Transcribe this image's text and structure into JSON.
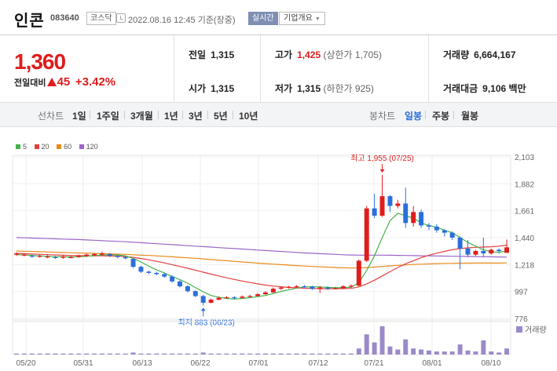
{
  "header": {
    "name": "인콘",
    "code": "083640",
    "market": "코스닥",
    "timestamp": "2022.08.16 12:45 기준(장중)",
    "realtime": "실시간",
    "company_overview": "기업개요"
  },
  "summary": {
    "price": "1,360",
    "change_label": "전일대비",
    "change_amount": "45",
    "change_percent": "+3.42%",
    "prev_close_label": "전일",
    "prev_close": "1,315",
    "open_label": "시가",
    "open": "1,315",
    "high_label": "고가",
    "high": "1,425",
    "upper_limit": "(상한가 1,705)",
    "low_label": "저가",
    "low": "1,315",
    "lower_limit": "(하한가 925)",
    "volume_label": "거래량",
    "volume": "6,664,167",
    "amount_label": "거래대금",
    "amount": "9,106 백만"
  },
  "periodbar": {
    "line_label": "선차트",
    "periods": [
      "1일",
      "1주일",
      "3개월",
      "1년",
      "3년",
      "5년",
      "10년"
    ],
    "candle_label": "봉차트",
    "candle_periods": [
      "일봉",
      "주봉",
      "월봉"
    ],
    "active_candle": "일봉"
  },
  "colors": {
    "up": "#e01c1c",
    "down": "#2a6fdb",
    "ma5": "#43b24a",
    "ma20": "#e34040",
    "ma60": "#e88a1a",
    "ma120": "#9b66c9"
  },
  "chart_data": {
    "type": "candlestick",
    "legend": [
      "5",
      "20",
      "60",
      "120"
    ],
    "y_ticks": [
      "2,103",
      "1,882",
      "1,661",
      "1,440",
      "1,218",
      "997",
      "776"
    ],
    "ylim": [
      776,
      2103
    ],
    "x_ticks": [
      "05/20",
      "05/31",
      "06/13",
      "06/22",
      "07/01",
      "07/12",
      "07/21",
      "08/01",
      "08/10"
    ],
    "high_annotation": "최고 1,955 (07/25)",
    "low_annotation": "최저 883 (06/23)",
    "volume_label": "거래량",
    "candles": [
      [
        1300,
        1310,
        1320,
        1290
      ],
      [
        1295,
        1300,
        1310,
        1285
      ],
      [
        1290,
        1285,
        1300,
        1275
      ],
      [
        1285,
        1290,
        1300,
        1275
      ],
      [
        1280,
        1285,
        1295,
        1270
      ],
      [
        1280,
        1275,
        1290,
        1265
      ],
      [
        1275,
        1285,
        1295,
        1265
      ],
      [
        1280,
        1280,
        1290,
        1270
      ],
      [
        1285,
        1290,
        1300,
        1275
      ],
      [
        1290,
        1300,
        1310,
        1280
      ],
      [
        1295,
        1305,
        1315,
        1285
      ],
      [
        1300,
        1310,
        1325,
        1290
      ],
      [
        1305,
        1290,
        1315,
        1280
      ],
      [
        1290,
        1280,
        1300,
        1270
      ],
      [
        1280,
        1270,
        1290,
        1260
      ],
      [
        1265,
        1200,
        1270,
        1190
      ],
      [
        1200,
        1160,
        1210,
        1150
      ],
      [
        1160,
        1150,
        1170,
        1140
      ],
      [
        1150,
        1140,
        1160,
        1130
      ],
      [
        1140,
        1120,
        1150,
        1110
      ],
      [
        1120,
        1080,
        1130,
        1070
      ],
      [
        1080,
        1040,
        1090,
        1030
      ],
      [
        1040,
        1000,
        1050,
        990
      ],
      [
        1000,
        960,
        1010,
        950
      ],
      [
        960,
        905,
        970,
        883
      ],
      [
        905,
        930,
        940,
        900
      ],
      [
        930,
        945,
        955,
        925
      ],
      [
        945,
        950,
        960,
        940
      ],
      [
        950,
        945,
        960,
        935
      ],
      [
        945,
        955,
        965,
        940
      ],
      [
        955,
        960,
        970,
        950
      ],
      [
        960,
        975,
        985,
        955
      ],
      [
        975,
        990,
        1000,
        970
      ],
      [
        990,
        1020,
        1030,
        985
      ],
      [
        1020,
        1030,
        1040,
        1010
      ],
      [
        1030,
        1035,
        1045,
        1020
      ],
      [
        1035,
        1040,
        1050,
        1025
      ],
      [
        1040,
        1035,
        1050,
        1025
      ],
      [
        1035,
        1020,
        1045,
        1010
      ],
      [
        1020,
        1030,
        1040,
        985
      ],
      [
        1030,
        1020,
        1040,
        1010
      ],
      [
        1020,
        1025,
        1035,
        1015
      ],
      [
        1025,
        1040,
        1050,
        1020
      ],
      [
        1040,
        1045,
        1055,
        1030
      ],
      [
        1045,
        1250,
        1260,
        1040
      ],
      [
        1250,
        1680,
        1700,
        1240
      ],
      [
        1680,
        1620,
        1800,
        1600
      ],
      [
        1620,
        1780,
        1955,
        1610
      ],
      [
        1780,
        1700,
        1790,
        1650
      ],
      [
        1700,
        1720,
        1750,
        1680
      ],
      [
        1720,
        1560,
        1850,
        1520
      ],
      [
        1560,
        1650,
        1700,
        1530
      ],
      [
        1650,
        1540,
        1670,
        1520
      ],
      [
        1540,
        1530,
        1560,
        1500
      ],
      [
        1530,
        1500,
        1550,
        1480
      ],
      [
        1500,
        1480,
        1510,
        1450
      ],
      [
        1480,
        1440,
        1490,
        1420
      ],
      [
        1440,
        1350,
        1450,
        1180
      ],
      [
        1350,
        1300,
        1420,
        1280
      ],
      [
        1300,
        1330,
        1340,
        1290
      ],
      [
        1330,
        1310,
        1440,
        1280
      ],
      [
        1310,
        1340,
        1350,
        1300
      ],
      [
        1340,
        1330,
        1350,
        1310
      ],
      [
        1315,
        1360,
        1425,
        1315
      ]
    ],
    "ma5": [
      1300,
      1298,
      1293,
      1290,
      1286,
      1283,
      1282,
      1281,
      1282,
      1286,
      1292,
      1297,
      1299,
      1297,
      1290,
      1270,
      1240,
      1205,
      1175,
      1150,
      1120,
      1095,
      1065,
      1030,
      995,
      965,
      950,
      940,
      935,
      940,
      947,
      955,
      965,
      980,
      998,
      1012,
      1025,
      1035,
      1037,
      1035,
      1031,
      1028,
      1030,
      1032,
      1070,
      1170,
      1290,
      1440,
      1580,
      1640,
      1620,
      1600,
      1560,
      1540,
      1525,
      1500,
      1480,
      1440,
      1400,
      1370,
      1340,
      1325,
      1320,
      1330
    ],
    "ma20": [
      1310,
      1308,
      1305,
      1303,
      1300,
      1298,
      1295,
      1293,
      1292,
      1291,
      1290,
      1290,
      1289,
      1288,
      1285,
      1278,
      1268,
      1258,
      1245,
      1232,
      1218,
      1203,
      1188,
      1172,
      1156,
      1140,
      1125,
      1110,
      1096,
      1083,
      1071,
      1060,
      1050,
      1042,
      1036,
      1031,
      1027,
      1024,
      1022,
      1021,
      1020,
      1020,
      1021,
      1023,
      1035,
      1060,
      1090,
      1125,
      1160,
      1195,
      1225,
      1250,
      1275,
      1295,
      1312,
      1327,
      1340,
      1350,
      1356,
      1360,
      1362,
      1365,
      1370,
      1378
    ],
    "ma60": [
      1330,
      1328,
      1326,
      1324,
      1322,
      1320,
      1318,
      1316,
      1314,
      1312,
      1310,
      1308,
      1306,
      1304,
      1302,
      1299,
      1296,
      1293,
      1290,
      1286,
      1282,
      1278,
      1274,
      1270,
      1265,
      1260,
      1255,
      1250,
      1245,
      1240,
      1235,
      1230,
      1226,
      1222,
      1218,
      1214,
      1210,
      1206,
      1203,
      1200,
      1197,
      1194,
      1192,
      1190,
      1191,
      1194,
      1198,
      1203,
      1208,
      1212,
      1216,
      1219,
      1222,
      1224,
      1226,
      1228,
      1229,
      1230,
      1230,
      1231,
      1231,
      1231,
      1231,
      1232
    ],
    "ma120": [
      1440,
      1438,
      1436,
      1434,
      1432,
      1430,
      1428,
      1426,
      1424,
      1421,
      1418,
      1415,
      1412,
      1409,
      1406,
      1402,
      1398,
      1394,
      1390,
      1386,
      1382,
      1378,
      1374,
      1370,
      1366,
      1362,
      1358,
      1354,
      1350,
      1346,
      1342,
      1338,
      1334,
      1330,
      1326,
      1322,
      1318,
      1314,
      1311,
      1308,
      1305,
      1302,
      1299,
      1297,
      1296,
      1296,
      1296,
      1296,
      1295,
      1294,
      1293,
      1292,
      1291,
      1290,
      1289,
      1288,
      1287,
      1286,
      1285,
      1284,
      1283,
      1282,
      1281,
      1280
    ],
    "volumes": [
      1,
      1,
      1,
      1,
      1,
      1,
      1,
      1,
      1,
      1,
      1,
      1,
      1,
      1,
      1,
      2,
      1,
      1,
      1,
      1,
      1,
      1,
      1,
      1,
      2,
      1,
      1,
      1,
      1,
      1,
      1,
      1,
      1,
      1,
      1,
      1,
      1,
      1,
      1,
      1,
      1,
      1,
      1,
      1,
      6,
      20,
      12,
      28,
      8,
      5,
      15,
      6,
      5,
      4,
      3,
      3,
      3,
      10,
      4,
      3,
      14,
      3,
      2,
      6
    ]
  }
}
